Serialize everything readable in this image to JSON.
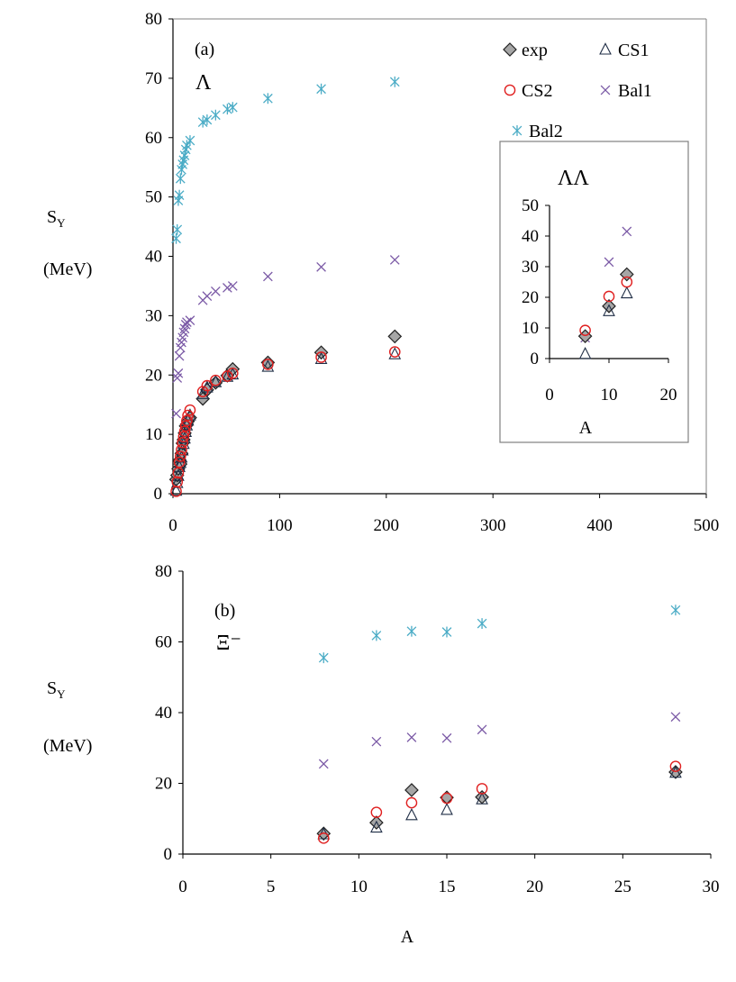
{
  "colors": {
    "exp_fill": "#a6a6a6",
    "exp_stroke": "#222222",
    "cs1": "#1f2d45",
    "cs2": "#e02020",
    "bal1": "#7b5aa6",
    "bal2": "#4bacc6",
    "axis": "#000000",
    "frame": "#808080"
  },
  "legend": {
    "exp": "exp",
    "cs1": "CS1",
    "cs2": "CS2",
    "bal1": "Bal1",
    "bal2": "Bal2"
  },
  "chart_data": [
    {
      "id": "panel_a",
      "type": "scatter",
      "panel_label": "(a)",
      "species": "Λ",
      "ylabel_line1": "S",
      "ylabel_sub": "Y",
      "ylabel_line2": "(MeV)",
      "xlabel": "",
      "xlim": [
        0,
        500
      ],
      "ylim": [
        0,
        80
      ],
      "xticks": [
        0,
        100,
        200,
        300,
        400,
        500
      ],
      "yticks": [
        0,
        10,
        20,
        30,
        40,
        50,
        60,
        70,
        80
      ],
      "series": [
        {
          "name": "exp",
          "marker": "diamond",
          "points": [
            [
              3,
              2.4
            ],
            [
              4,
              3.1
            ],
            [
              5,
              4.2
            ],
            [
              6,
              5.6
            ],
            [
              7,
              5.0
            ],
            [
              8,
              6.8
            ],
            [
              9,
              8.5
            ],
            [
              10,
              9.1
            ],
            [
              11,
              10.2
            ],
            [
              12,
              11.4
            ],
            [
              13,
              11.7
            ],
            [
              14,
              12.2
            ],
            [
              16,
              12.8
            ],
            [
              28,
              16.0
            ],
            [
              32,
              17.5
            ],
            [
              40,
              18.7
            ],
            [
              51,
              19.9
            ],
            [
              56,
              21.0
            ],
            [
              89,
              22.1
            ],
            [
              139,
              23.8
            ],
            [
              208,
              26.5
            ]
          ]
        },
        {
          "name": "CS1",
          "marker": "triangle",
          "points": [
            [
              3,
              0.5
            ],
            [
              4,
              1.8
            ],
            [
              5,
              3.0
            ],
            [
              6,
              4.5
            ],
            [
              7,
              5.2
            ],
            [
              8,
              6.1
            ],
            [
              9,
              7.3
            ],
            [
              10,
              8.4
            ],
            [
              11,
              9.3
            ],
            [
              12,
              10.4
            ],
            [
              13,
              11.5
            ],
            [
              14,
              12.3
            ],
            [
              16,
              13.2
            ],
            [
              28,
              16.8
            ],
            [
              32,
              17.9
            ],
            [
              40,
              18.8
            ],
            [
              51,
              19.7
            ],
            [
              56,
              20.1
            ],
            [
              89,
              21.4
            ],
            [
              139,
              22.7
            ],
            [
              208,
              23.5
            ]
          ]
        },
        {
          "name": "CS2",
          "marker": "circle",
          "points": [
            [
              3,
              0.4
            ],
            [
              4,
              2.0
            ],
            [
              5,
              3.5
            ],
            [
              6,
              5.3
            ],
            [
              7,
              6.3
            ],
            [
              8,
              7.4
            ],
            [
              9,
              8.6
            ],
            [
              10,
              9.6
            ],
            [
              11,
              10.5
            ],
            [
              12,
              11.4
            ],
            [
              13,
              12.3
            ],
            [
              14,
              13.2
            ],
            [
              16,
              14.1
            ],
            [
              28,
              17.2
            ],
            [
              32,
              18.2
            ],
            [
              40,
              19.1
            ],
            [
              51,
              19.8
            ],
            [
              56,
              20.3
            ],
            [
              89,
              21.8
            ],
            [
              139,
              23.0
            ],
            [
              208,
              23.9
            ]
          ]
        },
        {
          "name": "Bal1",
          "marker": "x",
          "points": [
            [
              3,
              13.5
            ],
            [
              4,
              19.5
            ],
            [
              5,
              20.3
            ],
            [
              6,
              23.2
            ],
            [
              7,
              24.6
            ],
            [
              8,
              25.5
            ],
            [
              9,
              26.3
            ],
            [
              10,
              27.2
            ],
            [
              11,
              27.8
            ],
            [
              12,
              28.5
            ],
            [
              13,
              28.9
            ],
            [
              16,
              29.2
            ],
            [
              28,
              32.6
            ],
            [
              32,
              33.3
            ],
            [
              40,
              34.1
            ],
            [
              51,
              34.7
            ],
            [
              56,
              35.0
            ],
            [
              89,
              36.6
            ],
            [
              139,
              38.2
            ],
            [
              208,
              39.4
            ]
          ]
        },
        {
          "name": "Bal2",
          "marker": "asterisk",
          "points": [
            [
              3,
              43.0
            ],
            [
              4,
              44.5
            ],
            [
              5,
              49.4
            ],
            [
              6,
              50.3
            ],
            [
              7,
              53.1
            ],
            [
              8,
              54.6
            ],
            [
              9,
              55.5
            ],
            [
              10,
              56.2
            ],
            [
              11,
              57.0
            ],
            [
              12,
              58.0
            ],
            [
              13,
              58.7
            ],
            [
              16,
              59.5
            ],
            [
              28,
              62.6
            ],
            [
              32,
              63.0
            ],
            [
              40,
              63.8
            ],
            [
              51,
              64.8
            ],
            [
              56,
              65.1
            ],
            [
              89,
              66.6
            ],
            [
              139,
              68.2
            ],
            [
              208,
              69.4
            ]
          ]
        }
      ]
    },
    {
      "id": "inset_LL",
      "type": "scatter",
      "species": "ΛΛ",
      "xlabel": "A",
      "xlim": [
        0,
        20
      ],
      "ylim": [
        0,
        50
      ],
      "xticks": [
        0,
        10,
        20
      ],
      "yticks": [
        0,
        10,
        20,
        30,
        40,
        50
      ],
      "series": [
        {
          "name": "exp",
          "marker": "diamond",
          "points": [
            [
              6,
              7.3
            ],
            [
              10,
              17.1
            ],
            [
              13,
              27.5
            ]
          ]
        },
        {
          "name": "CS1",
          "marker": "triangle",
          "points": [
            [
              6,
              1.5
            ],
            [
              10,
              15.5
            ],
            [
              13,
              21.3
            ]
          ]
        },
        {
          "name": "CS2",
          "marker": "circle",
          "points": [
            [
              6,
              9.2
            ],
            [
              10,
              20.3
            ],
            [
              13,
              25.0
            ]
          ]
        },
        {
          "name": "Bal1",
          "marker": "x",
          "points": [
            [
              6,
              6.8
            ],
            [
              10,
              31.5
            ],
            [
              13,
              41.5
            ]
          ]
        }
      ]
    },
    {
      "id": "panel_b",
      "type": "scatter",
      "panel_label": "(b)",
      "species": "Ξ⁻",
      "ylabel_line1": "S",
      "ylabel_sub": "Y",
      "ylabel_line2": "(MeV)",
      "xlabel": "A",
      "xlim": [
        0,
        30
      ],
      "ylim": [
        0,
        80
      ],
      "xticks": [
        0,
        5,
        10,
        15,
        20,
        25,
        30
      ],
      "yticks": [
        0,
        20,
        40,
        60,
        80
      ],
      "series": [
        {
          "name": "exp",
          "marker": "diamond",
          "points": [
            [
              8,
              5.8
            ],
            [
              11,
              8.9
            ],
            [
              13,
              18.1
            ],
            [
              15,
              16.0
            ],
            [
              17,
              16.1
            ],
            [
              28,
              23.2
            ]
          ]
        },
        {
          "name": "CS1",
          "marker": "triangle",
          "points": [
            [
              8,
              5.6
            ],
            [
              11,
              7.5
            ],
            [
              13,
              11.0
            ],
            [
              15,
              12.5
            ],
            [
              17,
              15.5
            ],
            [
              28,
              23.0
            ]
          ]
        },
        {
          "name": "CS2",
          "marker": "circle",
          "points": [
            [
              8,
              4.5
            ],
            [
              11,
              11.8
            ],
            [
              13,
              14.5
            ],
            [
              15,
              15.8
            ],
            [
              17,
              18.5
            ],
            [
              28,
              24.8
            ]
          ]
        },
        {
          "name": "Bal1",
          "marker": "x",
          "points": [
            [
              8,
              25.5
            ],
            [
              11,
              31.8
            ],
            [
              13,
              33.0
            ],
            [
              15,
              32.8
            ],
            [
              17,
              35.2
            ],
            [
              28,
              38.8
            ]
          ]
        },
        {
          "name": "Bal2",
          "marker": "asterisk",
          "points": [
            [
              8,
              55.5
            ],
            [
              11,
              61.8
            ],
            [
              13,
              63.0
            ],
            [
              15,
              62.8
            ],
            [
              17,
              65.2
            ],
            [
              28,
              69.0
            ]
          ]
        }
      ]
    }
  ]
}
